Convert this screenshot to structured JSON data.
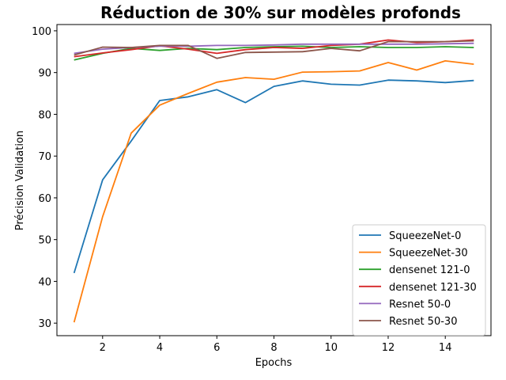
{
  "chart_data": {
    "type": "line",
    "title": "Réduction de 30% sur modèles profonds",
    "xlabel": "Epochs",
    "ylabel": "Précision Validation",
    "xlim": [
      0.4,
      15.6
    ],
    "ylim": [
      27,
      101.5
    ],
    "xticks": [
      2,
      4,
      6,
      8,
      10,
      12,
      14
    ],
    "yticks": [
      30,
      40,
      50,
      60,
      70,
      80,
      90,
      100
    ],
    "grid": false,
    "legend_position": "lower-right",
    "x": [
      1,
      2,
      3,
      4,
      5,
      6,
      7,
      8,
      9,
      10,
      11,
      12,
      13,
      14,
      15
    ],
    "series": [
      {
        "name": "SqueezeNet-0",
        "color": "#1f77b4",
        "values": [
          42.0,
          64.3,
          73.6,
          83.3,
          84.2,
          85.9,
          82.8,
          86.7,
          88.0,
          87.2,
          87.0,
          88.2,
          88.0,
          87.6,
          88.1
        ]
      },
      {
        "name": "SqueezeNet-30",
        "color": "#ff7f0e",
        "values": [
          30.2,
          55.5,
          75.5,
          82.2,
          85.0,
          87.7,
          88.8,
          88.4,
          90.1,
          90.2,
          90.4,
          92.4,
          90.6,
          92.8,
          92.0
        ]
      },
      {
        "name": "densenet 121-0",
        "color": "#2ca02c",
        "values": [
          93.0,
          94.6,
          95.8,
          95.3,
          95.8,
          95.5,
          96.0,
          96.2,
          96.3,
          96.0,
          96.2,
          96.0,
          96.0,
          96.2,
          96.0
        ]
      },
      {
        "name": "densenet 121-30",
        "color": "#d62728",
        "values": [
          93.8,
          94.7,
          95.5,
          96.4,
          95.6,
          94.6,
          95.5,
          96.0,
          95.8,
          96.5,
          96.8,
          97.8,
          97.2,
          97.4,
          97.8
        ]
      },
      {
        "name": "Resnet 50-0",
        "color": "#9467bd",
        "values": [
          94.6,
          95.6,
          96.0,
          96.3,
          96.3,
          96.5,
          96.5,
          96.6,
          96.8,
          96.8,
          96.8,
          96.8,
          96.8,
          96.9,
          97.0
        ]
      },
      {
        "name": "Resnet 50-30",
        "color": "#8c564b",
        "values": [
          94.2,
          96.1,
          96.0,
          96.5,
          96.5,
          93.4,
          94.8,
          94.9,
          95.0,
          95.8,
          95.2,
          97.4,
          97.4,
          97.4,
          97.6
        ]
      }
    ]
  }
}
